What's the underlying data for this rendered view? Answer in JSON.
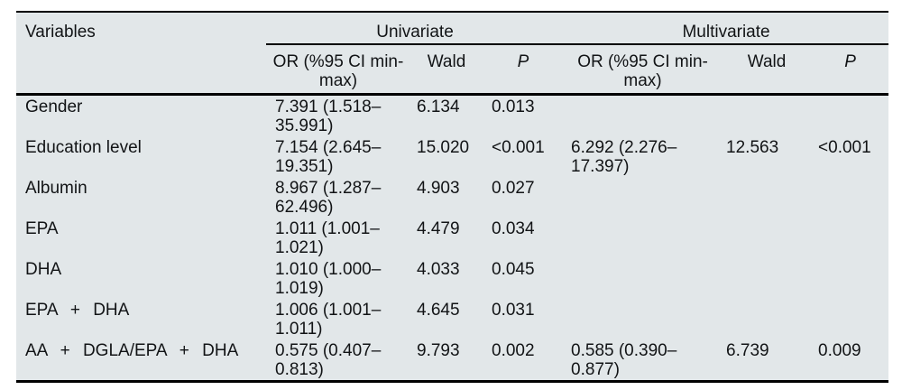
{
  "page": {
    "background": "#ffffff",
    "table_background": "#e2e7e9",
    "rule_color": "#000000",
    "text_color": "#121416"
  },
  "table": {
    "corner_header": "Variables",
    "groups": {
      "univariate": "Univariate",
      "multivariate": "Multivariate"
    },
    "subheaders": {
      "or": "OR (%95 CI min-max)",
      "wald": "Wald",
      "p": "P"
    },
    "rows": [
      {
        "variable": "Gender",
        "uni_or": "7.391 (1.518–35.991)",
        "uni_wald": "6.134",
        "uni_p": "0.013",
        "multi_or": "",
        "multi_wald": "",
        "multi_p": ""
      },
      {
        "variable": "Education level",
        "uni_or": "7.154 (2.645–19.351)",
        "uni_wald": "15.020",
        "uni_p": "<0.001",
        "multi_or": "6.292 (2.276–17.397)",
        "multi_wald": "12.563",
        "multi_p": "<0.001"
      },
      {
        "variable": "Albumin",
        "uni_or": "8.967 (1.287–62.496)",
        "uni_wald": "4.903",
        "uni_p": "0.027",
        "multi_or": "",
        "multi_wald": "",
        "multi_p": ""
      },
      {
        "variable": "EPA",
        "uni_or": "1.011 (1.001–1.021)",
        "uni_wald": "4.479",
        "uni_p": "0.034",
        "multi_or": "",
        "multi_wald": "",
        "multi_p": ""
      },
      {
        "variable": "DHA",
        "uni_or": "1.010 (1.000–1.019)",
        "uni_wald": "4.033",
        "uni_p": "0.045",
        "multi_or": "",
        "multi_wald": "",
        "multi_p": ""
      },
      {
        "variable": "EPA + DHA",
        "uni_or": "1.006 (1.001–1.011)",
        "uni_wald": "4.645",
        "uni_p": "0.031",
        "multi_or": "",
        "multi_wald": "",
        "multi_p": ""
      },
      {
        "variable": "AA + DGLA/EPA + DHA",
        "uni_or": "0.575 (0.407–0.813)",
        "uni_wald": "9.793",
        "uni_p": "0.002",
        "multi_or": "0.585 (0.390–0.877)",
        "multi_wald": "6.739",
        "multi_p": "0.009"
      }
    ]
  }
}
